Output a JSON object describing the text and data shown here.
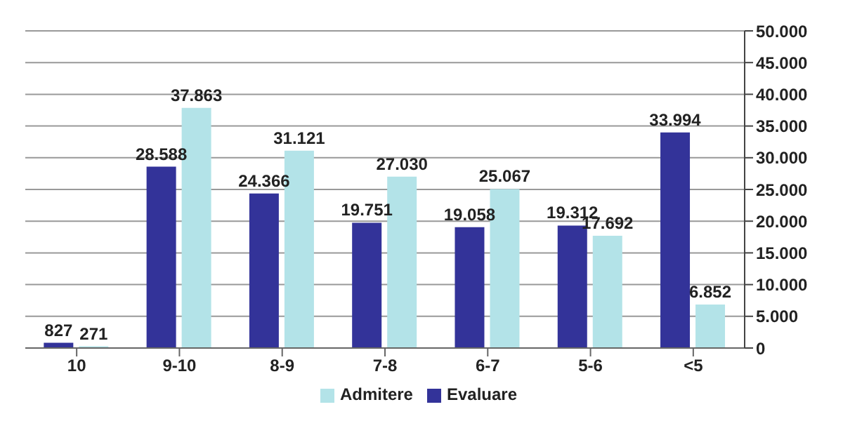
{
  "chart_data": {
    "type": "bar",
    "categories": [
      "10",
      "9-10",
      "8-9",
      "7-8",
      "6-7",
      "5-6",
      "<5"
    ],
    "series": [
      {
        "name": "Evaluare",
        "color": "#333399",
        "values": [
          827,
          28588,
          24366,
          19751,
          19058,
          19312,
          33994
        ],
        "value_labels": [
          "827",
          "28.588",
          "24.366",
          "19.751",
          "19.058",
          "19.312",
          "33.994"
        ]
      },
      {
        "name": "Admitere",
        "color": "#b3e3e8",
        "values": [
          271,
          37863,
          31121,
          27030,
          25067,
          17692,
          6852
        ],
        "value_labels": [
          "271",
          "37.863",
          "31.121",
          "27.030",
          "25.067",
          "17.692",
          "6.852"
        ]
      }
    ],
    "ylim": [
      0,
      50000
    ],
    "yticks": [
      {
        "value": 0,
        "label": "0"
      },
      {
        "value": 5000,
        "label": "5.000"
      },
      {
        "value": 10000,
        "label": "10.000"
      },
      {
        "value": 15000,
        "label": "15.000"
      },
      {
        "value": 20000,
        "label": "20.000"
      },
      {
        "value": 25000,
        "label": "25.000"
      },
      {
        "value": 30000,
        "label": "30.000"
      },
      {
        "value": 35000,
        "label": "35.000"
      },
      {
        "value": 40000,
        "label": "40.000"
      },
      {
        "value": 45000,
        "label": "45.000"
      },
      {
        "value": 50000,
        "label": "50.000"
      }
    ],
    "grid": "y",
    "legend": "bottom"
  }
}
